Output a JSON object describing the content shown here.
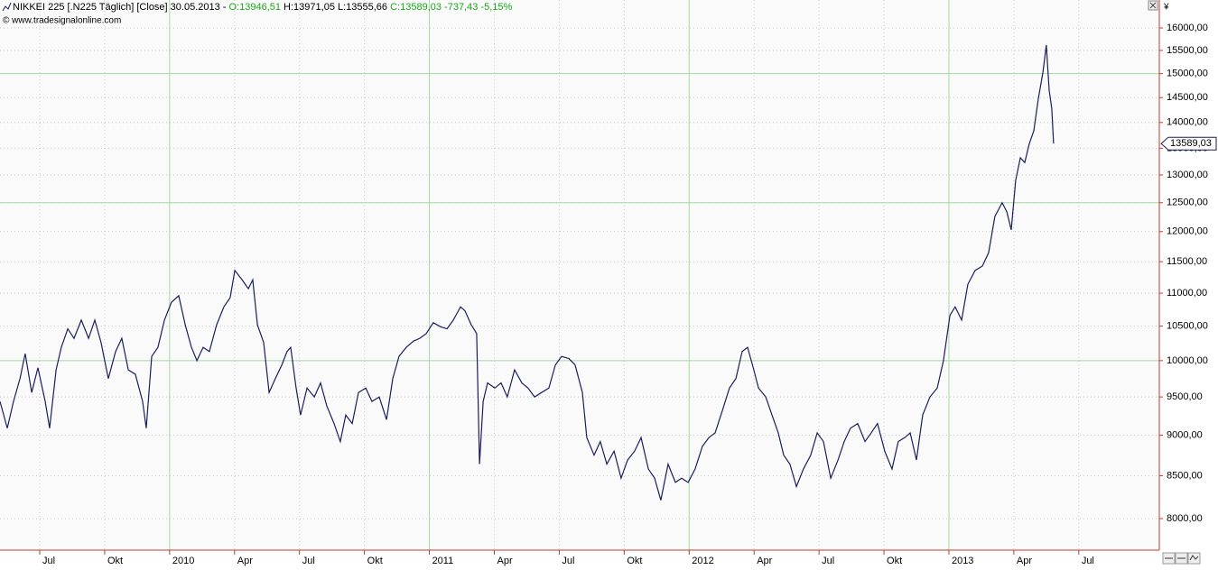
{
  "chart_data": {
    "type": "line",
    "title_parts": [
      {
        "text": "NIKKEI 225 [.N225  Täglich] [Close] 30.05.2013 - ",
        "color": "#000000"
      },
      {
        "text": "O:13946,51",
        "color": "#18a818"
      },
      {
        "text": " H:13971,05 L:13555,66 ",
        "color": "#000000"
      },
      {
        "text": "C:13589,03 -737,43 -5,15%",
        "color": "#18a818"
      }
    ],
    "subtitle": "© www.tradesignalonline.com",
    "y_unit": "¥",
    "last_price_label": "13589,03",
    "color": "#1a1f5a",
    "ylog": true,
    "grid": true,
    "xlim": [
      2009.347,
      2013.81
    ],
    "ylim": [
      7651,
      16645
    ],
    "major_grid_y": [
      10000,
      12500,
      15000
    ],
    "xticks": [
      {
        "value": 2009.5,
        "label": "Jul"
      },
      {
        "value": 2009.75,
        "label": "Okt"
      },
      2010,
      {
        "value": 2010.25,
        "label": "Apr"
      },
      {
        "value": 2010.5,
        "label": "Jul"
      },
      {
        "value": 2010.75,
        "label": "Okt"
      },
      2011,
      {
        "value": 2011.25,
        "label": "Apr"
      },
      {
        "value": 2011.5,
        "label": "Jul"
      },
      {
        "value": 2011.75,
        "label": "Okt"
      },
      2012,
      {
        "value": 2012.25,
        "label": "Apr"
      },
      {
        "value": 2012.5,
        "label": "Jul"
      },
      {
        "value": 2012.75,
        "label": "Okt"
      },
      2013,
      {
        "value": 2013.25,
        "label": "Apr"
      },
      {
        "value": 2013.5,
        "label": "Jul"
      }
    ],
    "yticks": [
      {
        "value": 8000,
        "label": "8000,00"
      },
      {
        "value": 8500,
        "label": "8500,00"
      },
      {
        "value": 9000,
        "label": "9000,00"
      },
      {
        "value": 9500,
        "label": "9500,00"
      },
      {
        "value": 10000,
        "label": "10000,00"
      },
      {
        "value": 10500,
        "label": "10500,00"
      },
      {
        "value": 11000,
        "label": "11000,00"
      },
      {
        "value": 11500,
        "label": "11500,00"
      },
      {
        "value": 12000,
        "label": "12000,00"
      },
      {
        "value": 12500,
        "label": "12500,00"
      },
      {
        "value": 13000,
        "label": "13000,00"
      },
      {
        "value": 13500,
        "label": "13500,00"
      },
      {
        "value": 14000,
        "label": "14000,00"
      },
      {
        "value": 14500,
        "label": "14500,00"
      },
      {
        "value": 15000,
        "label": "15000,00"
      },
      {
        "value": 15500,
        "label": "15500,00"
      },
      {
        "value": 16000,
        "label": "16000,00"
      }
    ],
    "x": [
      2009.347,
      2009.375,
      2009.399,
      2009.424,
      2009.444,
      2009.469,
      2009.493,
      2009.521,
      2009.538,
      2009.563,
      2009.583,
      2009.608,
      2009.632,
      2009.66,
      2009.688,
      2009.712,
      2009.736,
      2009.764,
      2009.792,
      2009.816,
      2009.841,
      2009.868,
      2009.896,
      2009.91,
      2009.931,
      2009.955,
      2009.98,
      2010.007,
      2010.035,
      2010.06,
      2010.084,
      2010.105,
      2010.129,
      2010.153,
      2010.181,
      2010.209,
      2010.233,
      2010.251,
      2010.279,
      2010.303,
      2010.32,
      2010.338,
      2010.362,
      2010.383,
      2010.407,
      2010.432,
      2010.452,
      2010.466,
      2010.487,
      2010.504,
      2010.529,
      2010.557,
      2010.581,
      2010.605,
      2010.633,
      2010.657,
      2010.678,
      2010.703,
      2010.727,
      2010.755,
      2010.779,
      2010.807,
      2010.835,
      2010.859,
      2010.883,
      2010.911,
      2010.939,
      2010.963,
      2010.988,
      2011.015,
      2011.043,
      2011.068,
      2011.092,
      2011.12,
      2011.137,
      2011.161,
      2011.182,
      2011.193,
      2011.207,
      2011.224,
      2011.252,
      2011.276,
      2011.3,
      2011.328,
      2011.356,
      2011.38,
      2011.405,
      2011.432,
      2011.46,
      2011.485,
      2011.509,
      2011.537,
      2011.561,
      2011.589,
      2011.606,
      2011.634,
      2011.658,
      2011.683,
      2011.711,
      2011.738,
      2011.763,
      2011.79,
      2011.815,
      2011.843,
      2011.867,
      2011.891,
      2011.919,
      2011.947,
      2011.971,
      2011.996,
      2012.023,
      2012.051,
      2012.076,
      2012.1,
      2012.128,
      2012.155,
      2012.18,
      2012.204,
      2012.225,
      2012.249,
      2012.267,
      2012.295,
      2012.319,
      2012.343,
      2012.364,
      2012.388,
      2012.413,
      2012.44,
      2012.468,
      2012.493,
      2012.517,
      2012.545,
      2012.573,
      2012.597,
      2012.621,
      2012.649,
      2012.677,
      2012.701,
      2012.725,
      2012.753,
      2012.781,
      2012.805,
      2012.83,
      2012.851,
      2012.875,
      2012.899,
      2012.927,
      2012.955,
      2012.979,
      2013.004,
      2013.024,
      2013.049,
      2013.073,
      2013.101,
      2013.129,
      2013.153,
      2013.177,
      2013.205,
      2013.223,
      2013.24,
      2013.257,
      2013.275,
      2013.292,
      2013.309,
      2013.327,
      2013.344,
      2013.362,
      2013.375,
      2013.386,
      2013.396,
      2013.403
    ],
    "values": [
      9440,
      9090,
      9440,
      9750,
      10100,
      9560,
      9900,
      9440,
      9090,
      9870,
      10190,
      10460,
      10320,
      10590,
      10320,
      10590,
      10260,
      9750,
      10130,
      10320,
      9870,
      9810,
      9440,
      9090,
      10060,
      10190,
      10590,
      10860,
      10960,
      10520,
      10190,
      10000,
      10190,
      10130,
      10520,
      10790,
      10930,
      11360,
      11210,
      11070,
      11210,
      10520,
      10260,
      9560,
      9750,
      9940,
      10130,
      10190,
      9620,
      9260,
      9620,
      9500,
      9690,
      9380,
      9150,
      8920,
      9260,
      9150,
      9560,
      9620,
      9440,
      9500,
      9200,
      9750,
      10060,
      10190,
      10280,
      10320,
      10390,
      10550,
      10490,
      10460,
      10590,
      10790,
      10730,
      10520,
      10390,
      8640,
      9440,
      9690,
      9620,
      9690,
      9500,
      9870,
      9690,
      9620,
      9500,
      9560,
      9620,
      9940,
      10060,
      10030,
      9940,
      9560,
      8970,
      8750,
      8920,
      8640,
      8800,
      8470,
      8690,
      8800,
      8970,
      8580,
      8470,
      8210,
      8640,
      8420,
      8470,
      8420,
      8580,
      8860,
      8970,
      9030,
      9320,
      9620,
      9750,
      10130,
      10190,
      9870,
      9620,
      9500,
      9260,
      9030,
      8750,
      8640,
      8370,
      8580,
      8750,
      9030,
      8920,
      8470,
      8690,
      8920,
      9090,
      9150,
      8920,
      9030,
      9150,
      8800,
      8580,
      8920,
      8970,
      9030,
      8690,
      9260,
      9500,
      9620,
      10000,
      10660,
      10790,
      10590,
      11140,
      11360,
      11430,
      11650,
      12260,
      12500,
      12340,
      12030,
      12900,
      13320,
      13230,
      13580,
      13840,
      14470,
      15030,
      15620,
      14650,
      14280,
      13589.03
    ]
  }
}
